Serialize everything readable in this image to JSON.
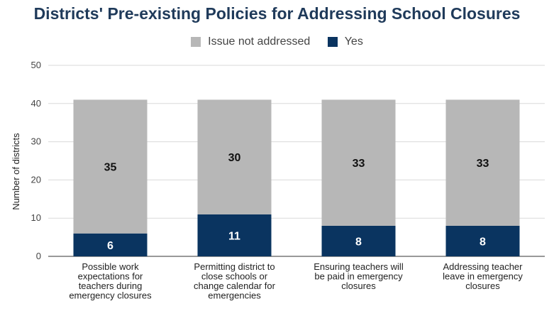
{
  "chart_data": {
    "type": "bar",
    "stacked": true,
    "title": "Districts' Pre-existing Policies for Addressing School Closures",
    "ylabel": "Number of districts",
    "xlabel": "",
    "ylim": [
      0,
      50
    ],
    "yticks": [
      0,
      10,
      20,
      30,
      40,
      50
    ],
    "grid": true,
    "legend_position": "top",
    "categories": [
      [
        "Possible work",
        "expectations for",
        "teachers during",
        "emergency closures"
      ],
      [
        "Permitting district to",
        "close schools or",
        "change calendar for",
        "emergencies"
      ],
      [
        "Ensuring teachers will",
        "be paid in emergency",
        "closures"
      ],
      [
        "Addressing teacher",
        "leave in emergency",
        "closures"
      ]
    ],
    "series": [
      {
        "name": "Yes",
        "color": "#0a3460",
        "label_color": "#ffffff",
        "values": [
          6,
          11,
          8,
          8
        ]
      },
      {
        "name": "Issue not addressed",
        "color": "#b7b7b7",
        "label_color": "#111111",
        "values": [
          35,
          30,
          33,
          33
        ]
      }
    ],
    "legend_order": [
      "Issue not addressed",
      "Yes"
    ]
  }
}
